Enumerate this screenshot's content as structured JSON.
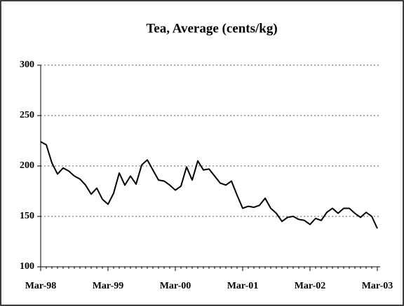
{
  "chart_data": {
    "type": "line",
    "title": "Tea, Average (cents/kg)",
    "categories": [
      "Mar-98",
      null,
      null,
      null,
      null,
      null,
      null,
      null,
      null,
      null,
      null,
      null,
      "Mar-99",
      null,
      null,
      null,
      null,
      null,
      null,
      null,
      null,
      null,
      null,
      null,
      "Mar-00",
      null,
      null,
      null,
      null,
      null,
      null,
      null,
      null,
      null,
      null,
      null,
      "Mar-01",
      null,
      null,
      null,
      null,
      null,
      null,
      null,
      null,
      null,
      null,
      null,
      "Mar-02",
      null,
      null,
      null,
      null,
      null,
      null,
      null,
      null,
      null,
      null,
      null,
      "Mar-03"
    ],
    "series": [
      {
        "name": "Tea",
        "color": "#000000",
        "values": [
          224,
          221,
          203,
          192,
          198,
          195,
          190,
          187,
          181,
          172,
          178,
          167,
          162,
          173,
          193,
          181,
          190,
          182,
          201,
          206,
          196,
          186,
          185,
          181,
          176,
          180,
          199,
          186,
          205,
          196,
          197,
          190,
          183,
          181,
          185,
          171,
          158,
          160,
          159,
          161,
          168,
          158,
          153,
          145,
          149,
          150,
          147,
          146,
          142,
          148,
          146,
          154,
          158,
          153,
          158,
          158,
          153,
          149,
          154,
          150,
          138
        ]
      }
    ],
    "ylim": [
      100,
      300
    ],
    "yticks": [
      100,
      150,
      200,
      250,
      300
    ],
    "grid": true
  }
}
